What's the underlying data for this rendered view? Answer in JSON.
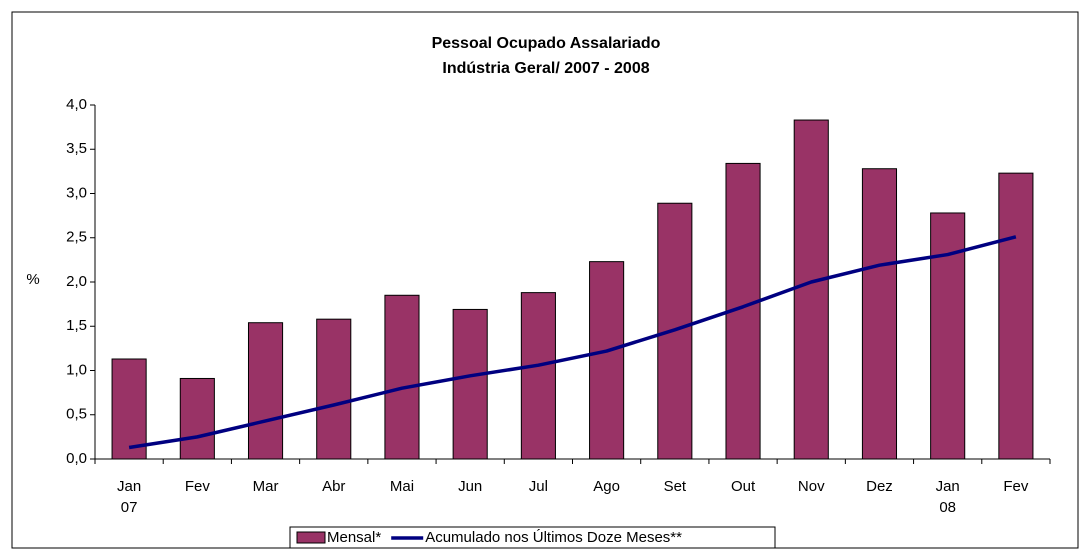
{
  "chart_data": {
    "type": "bar-line",
    "title": "Pessoal Ocupado Assalariado",
    "subtitle": "Indústria Geral/ 2007 - 2008",
    "y_label": "%",
    "categories": [
      "Jan\n07",
      "Fev",
      "Mar",
      "Abr",
      "Mai",
      "Jun",
      "Jul",
      "Ago",
      "Set",
      "Out",
      "Nov",
      "Dez",
      "Jan\n08",
      "Fev"
    ],
    "series": [
      {
        "name": "Mensal*",
        "type": "bar",
        "color": "#993366",
        "values": [
          1.13,
          0.91,
          1.54,
          1.58,
          1.85,
          1.69,
          1.88,
          2.23,
          2.89,
          3.34,
          3.83,
          3.28,
          2.78,
          3.23
        ]
      },
      {
        "name": "Acumulado nos Últimos Doze Meses**",
        "type": "line",
        "color": "#000080",
        "values": [
          0.13,
          0.25,
          0.43,
          0.61,
          0.8,
          0.94,
          1.06,
          1.22,
          1.46,
          1.72,
          2.0,
          2.19,
          2.31,
          2.51
        ]
      }
    ],
    "ylim": [
      0,
      4
    ],
    "yticks": [
      {
        "value": 0,
        "label": "0,0"
      },
      {
        "value": 0.5,
        "label": "0,5"
      },
      {
        "value": 1,
        "label": "1,0"
      },
      {
        "value": 1.5,
        "label": "1,5"
      },
      {
        "value": 2,
        "label": "2,0"
      },
      {
        "value": 2.5,
        "label": "2,5"
      },
      {
        "value": 3,
        "label": "3,0"
      },
      {
        "value": 3.5,
        "label": "3,5"
      },
      {
        "value": 4,
        "label": "4,0"
      }
    ],
    "grid": false,
    "legend": "bottom"
  }
}
